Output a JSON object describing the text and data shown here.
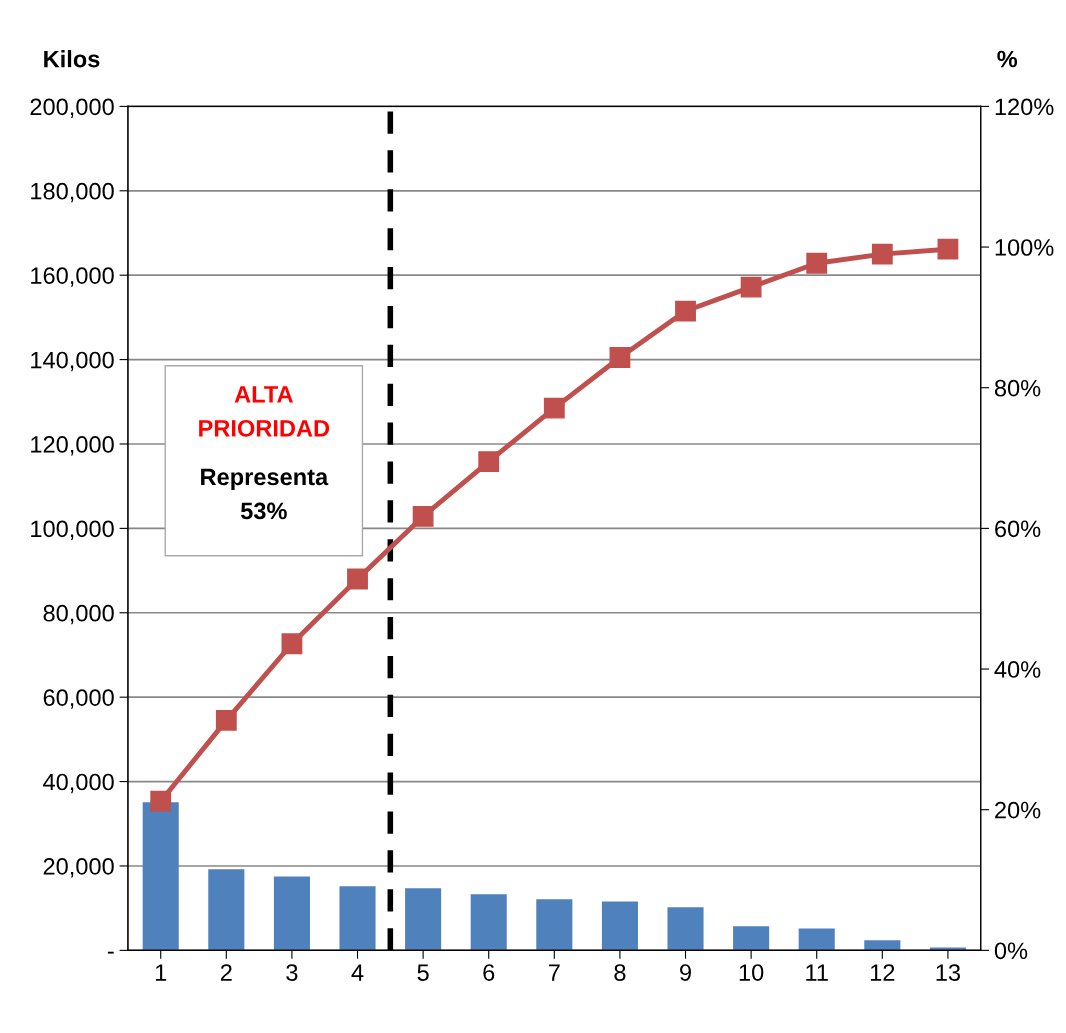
{
  "chart_data": {
    "type": "bar",
    "ylabel": "Kilos",
    "y2label": "%",
    "x": [
      1,
      2,
      3,
      4,
      5,
      6,
      7,
      8,
      9,
      10,
      11,
      12,
      13
    ],
    "xlim": [
      0.5,
      13.5
    ],
    "xticks": [
      1,
      2,
      3,
      4,
      5,
      6,
      7,
      8,
      9,
      10,
      11,
      12,
      13
    ],
    "series": [
      {
        "color": "#4f81bd",
        "values": [
          35100,
          19200,
          17500,
          15200,
          14700,
          13300,
          12100,
          11600,
          10200,
          5700,
          5200,
          2400,
          700
        ]
      },
      {
        "type": "line",
        "axis": "y2",
        "color": "#c0504d",
        "marker": "square",
        "line_style": "solid",
        "values": [
          21.2,
          32.7,
          43.6,
          52.8,
          61.7,
          69.5,
          77.1,
          84.3,
          90.9,
          94.3,
          97.7,
          99.0,
          99.7
        ]
      }
    ],
    "ylim": [
      0,
      200000
    ],
    "yticks": [
      {
        "value": 0,
        "label": "-"
      },
      {
        "value": 20000,
        "label": "20,000"
      },
      {
        "value": 40000,
        "label": "40,000"
      },
      {
        "value": 60000,
        "label": "60,000"
      },
      {
        "value": 80000,
        "label": "80,000"
      },
      {
        "value": 100000,
        "label": "100,000"
      },
      {
        "value": 120000,
        "label": "120,000"
      },
      {
        "value": 140000,
        "label": "140,000"
      },
      {
        "value": 160000,
        "label": "160,000"
      },
      {
        "value": 180000,
        "label": "180,000"
      },
      {
        "value": 200000,
        "label": "200,000"
      }
    ],
    "y2lim": [
      0,
      120
    ],
    "y2ticks": [
      {
        "value": 0,
        "label": "0%"
      },
      {
        "value": 20,
        "label": "20%"
      },
      {
        "value": 40,
        "label": "40%"
      },
      {
        "value": 60,
        "label": "60%"
      },
      {
        "value": 80,
        "label": "80%"
      },
      {
        "value": 100,
        "label": "100%"
      },
      {
        "value": 120,
        "label": "120%"
      }
    ],
    "ref_lines": [
      {
        "axis": "x",
        "value": 4.5,
        "color": "#000000",
        "line_style": "dashed"
      }
    ],
    "annotations": [
      "ALTA\nPRIORIDAD",
      "Representa\n53%"
    ],
    "grid": "y",
    "legend": false
  }
}
